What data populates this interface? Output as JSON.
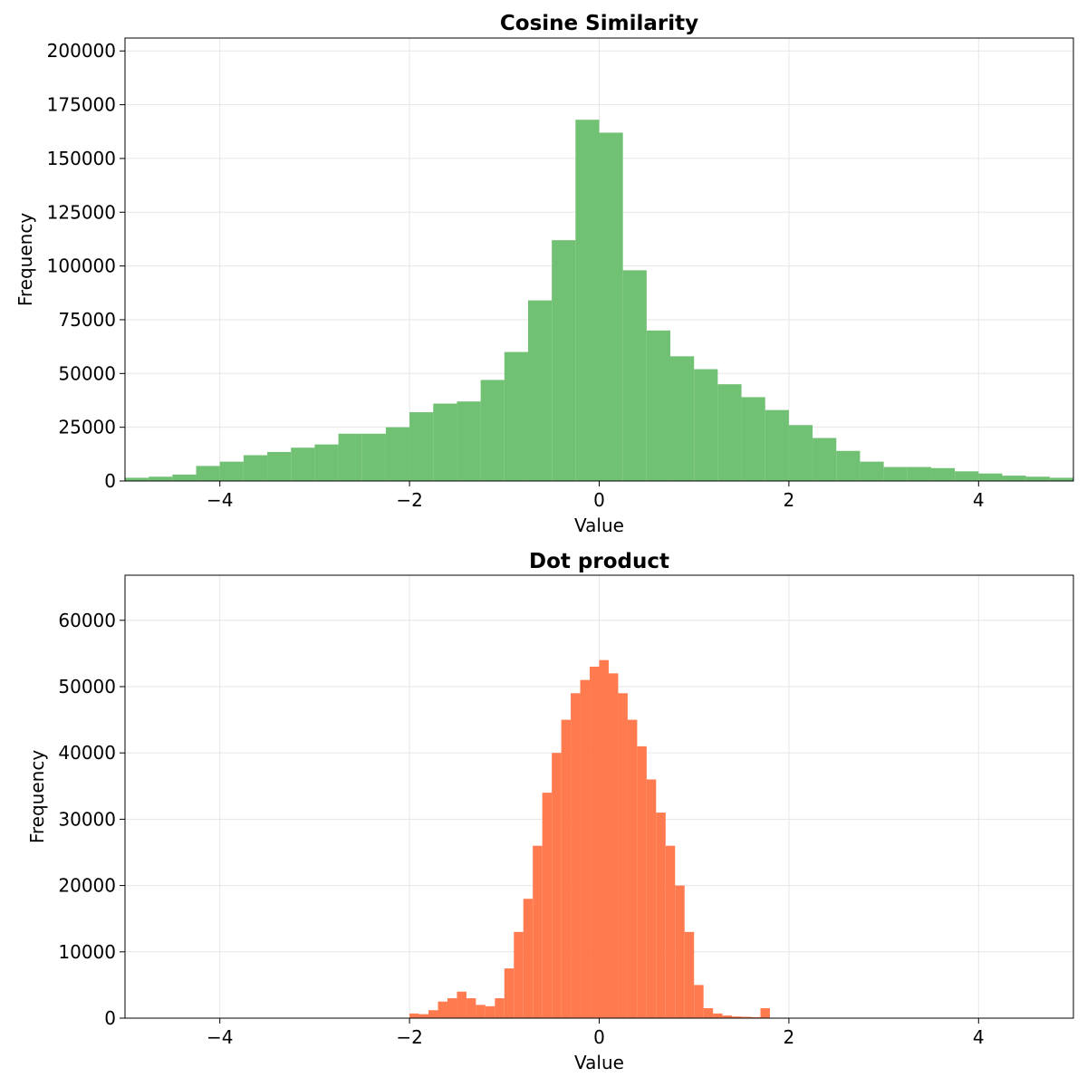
{
  "chart_data": [
    {
      "type": "bar",
      "subtype": "histogram",
      "title": "Cosine Similarity",
      "xlabel": "Value",
      "ylabel": "Frequency",
      "xlim": [
        -5,
        5
      ],
      "ylim": [
        0,
        206000
      ],
      "xticks": [
        -4,
        -2,
        0,
        2,
        4
      ],
      "xtick_labels": [
        "−4",
        "−2",
        "0",
        "2",
        "4"
      ],
      "yticks": [
        0,
        25000,
        50000,
        75000,
        100000,
        125000,
        150000,
        175000,
        200000
      ],
      "ytick_labels": [
        "0",
        "25000",
        "50000",
        "75000",
        "100000",
        "125000",
        "150000",
        "175000",
        "200000"
      ],
      "grid": true,
      "color": "#71c174",
      "bin_width": 0.25,
      "x": [
        -4.875,
        -4.625,
        -4.375,
        -4.125,
        -3.875,
        -3.625,
        -3.375,
        -3.125,
        -2.875,
        -2.625,
        -2.375,
        -2.125,
        -1.875,
        -1.625,
        -1.375,
        -1.125,
        -0.875,
        -0.625,
        -0.375,
        -0.125,
        0.125,
        0.375,
        0.625,
        0.875,
        1.125,
        1.375,
        1.625,
        1.875,
        2.125,
        2.375,
        2.625,
        2.875,
        3.125,
        3.375,
        3.625,
        3.875,
        4.125,
        4.375,
        4.625,
        4.875
      ],
      "values": [
        1500,
        2000,
        3000,
        7000,
        9000,
        12000,
        13500,
        15500,
        17000,
        22000,
        22000,
        25000,
        32000,
        36000,
        37000,
        47000,
        60000,
        84000,
        112000,
        168000,
        162000,
        98000,
        70000,
        58000,
        52000,
        45000,
        39000,
        33000,
        26000,
        20000,
        14000,
        9000,
        6500,
        6500,
        6000,
        4500,
        3500,
        2500,
        2000,
        1500
      ]
    },
    {
      "type": "bar",
      "subtype": "histogram",
      "title": "Dot product",
      "xlabel": "Value",
      "ylabel": "Frequency",
      "xlim": [
        -5,
        5
      ],
      "ylim": [
        0,
        66800
      ],
      "xticks": [
        -4,
        -2,
        0,
        2,
        4
      ],
      "xtick_labels": [
        "−4",
        "−2",
        "0",
        "2",
        "4"
      ],
      "yticks": [
        0,
        10000,
        20000,
        30000,
        40000,
        50000,
        60000
      ],
      "ytick_labels": [
        "0",
        "10000",
        "20000",
        "30000",
        "40000",
        "50000",
        "60000"
      ],
      "grid": true,
      "color": "#ff7a4e",
      "bin_width": 0.1,
      "x": [
        -1.95,
        -1.85,
        -1.75,
        -1.65,
        -1.55,
        -1.45,
        -1.35,
        -1.25,
        -1.15,
        -1.05,
        -0.95,
        -0.85,
        -0.75,
        -0.65,
        -0.55,
        -0.45,
        -0.35,
        -0.25,
        -0.15,
        -0.05,
        0.05,
        0.15,
        0.25,
        0.35,
        0.45,
        0.55,
        0.65,
        0.75,
        0.85,
        0.95,
        1.05,
        1.15,
        1.25,
        1.35,
        1.45,
        1.55,
        1.65,
        1.75
      ],
      "values": [
        700,
        600,
        1200,
        2500,
        3000,
        4000,
        3000,
        2000,
        1800,
        3000,
        7500,
        13000,
        18000,
        26000,
        34000,
        40000,
        45000,
        49000,
        51000,
        53000,
        54000,
        52000,
        49000,
        45000,
        41000,
        36000,
        31000,
        26000,
        20000,
        13000,
        5000,
        1500,
        700,
        400,
        250,
        200,
        150,
        1500
      ]
    }
  ]
}
